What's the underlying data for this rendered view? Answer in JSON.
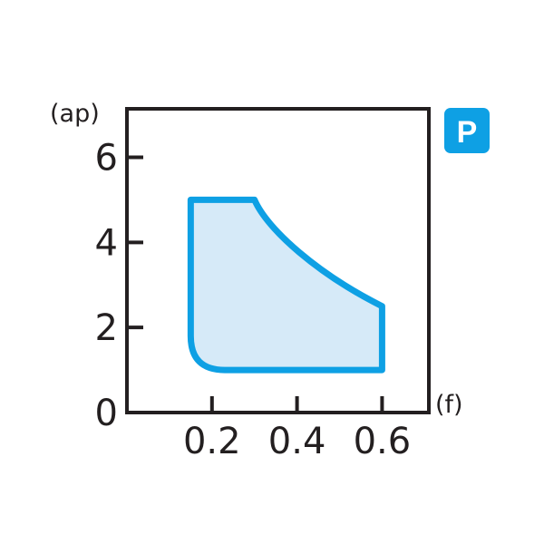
{
  "chart_data": {
    "type": "area",
    "title": "",
    "xlabel": "(f)",
    "ylabel": "(ap)",
    "xlim": [
      0,
      0.71
    ],
    "ylim": [
      0,
      7.14
    ],
    "x_ticks": [
      0.2,
      0.4,
      0.6
    ],
    "x_tick_labels": [
      "0.2",
      "0.4",
      "0.6"
    ],
    "y_ticks": [
      0,
      2,
      4,
      6
    ],
    "y_tick_labels": [
      "0",
      "2",
      "4",
      "6"
    ],
    "grid": false,
    "region": {
      "boundary": [
        {
          "x": 0.15,
          "y": 5.0
        },
        {
          "x": 0.3,
          "y": 5.0
        },
        {
          "x": 0.6,
          "y": 2.5
        },
        {
          "x": 0.6,
          "y": 1.0
        },
        {
          "x": 0.23,
          "y": 1.0
        },
        {
          "x": 0.15,
          "y": 1.8
        }
      ],
      "stroke_color": "#0ea0e4",
      "fill_color": "#d6eaf8"
    },
    "badge": {
      "label": "P",
      "color": "#0ea0e4"
    }
  }
}
